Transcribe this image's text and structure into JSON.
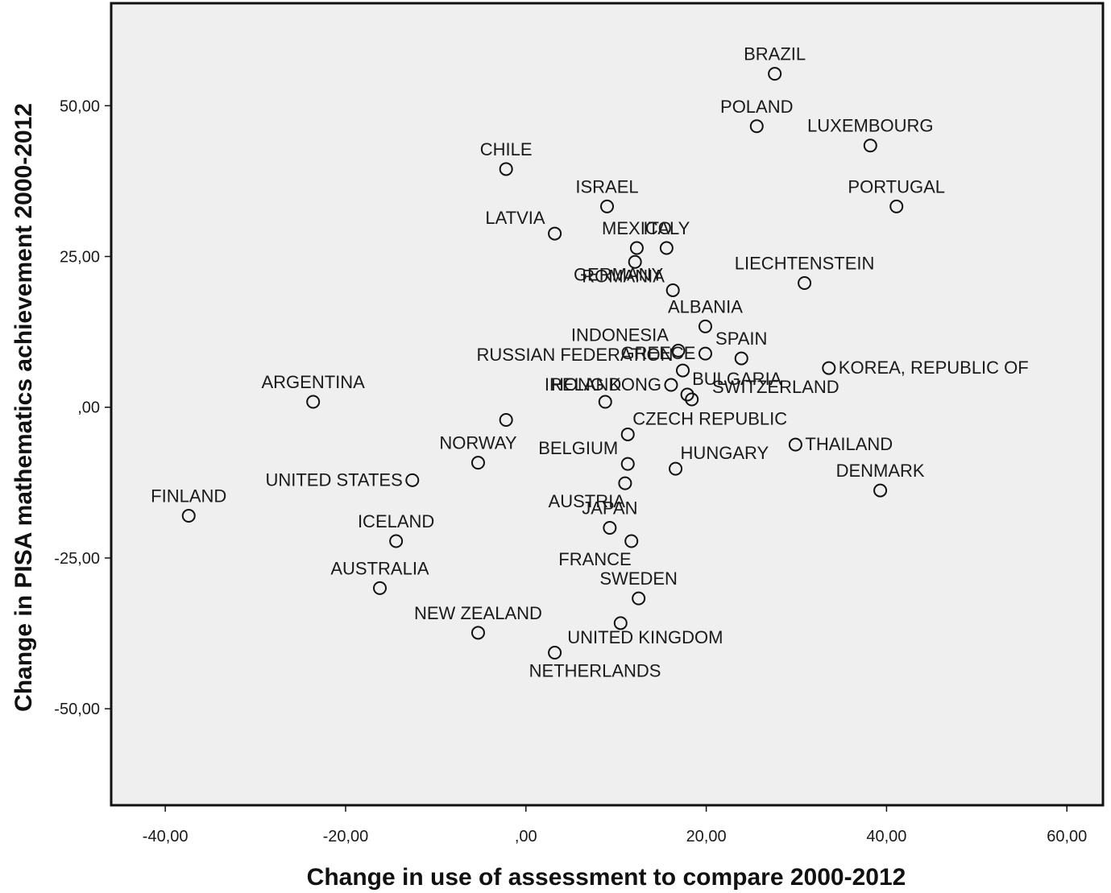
{
  "chart_data": {
    "type": "scatter",
    "xlabel": "Change in use of assessment to compare 2000-2012",
    "ylabel": "Change in PISA mathematics achievement 2000-2012",
    "xlim": [
      -46,
      64
    ],
    "ylim": [
      -66,
      67
    ],
    "xticks": [
      {
        "value": -40,
        "label": "-40,00"
      },
      {
        "value": -20,
        "label": "-20,00"
      },
      {
        "value": 0,
        "label": ",00"
      },
      {
        "value": 20,
        "label": "20,00"
      },
      {
        "value": 40,
        "label": "40,00"
      },
      {
        "value": 60,
        "label": "60,00"
      }
    ],
    "yticks": [
      {
        "value": 50,
        "label": "50,00"
      },
      {
        "value": 25,
        "label": "25,00"
      },
      {
        "value": 0,
        "label": ",00"
      },
      {
        "value": -25,
        "label": "-25,00"
      },
      {
        "value": -50,
        "label": "-50,00"
      }
    ],
    "grid": false,
    "background": "#efefef",
    "marker": "open-circle",
    "points": [
      {
        "x": 27.6,
        "y": 55.3,
        "label": "BRAZIL",
        "la": "above"
      },
      {
        "x": 25.6,
        "y": 46.6,
        "label": "POLAND",
        "la": "above"
      },
      {
        "x": 38.2,
        "y": 43.4,
        "label": "LUXEMBOURG",
        "la": "above"
      },
      {
        "x": -2.2,
        "y": 39.5,
        "label": "CHILE",
        "la": "above"
      },
      {
        "x": 9.0,
        "y": 33.3,
        "label": "ISRAEL",
        "la": "above"
      },
      {
        "x": 41.1,
        "y": 33.3,
        "label": "PORTUGAL",
        "la": "above"
      },
      {
        "x": 3.2,
        "y": 28.8,
        "label": "LATVIA",
        "la": "upper-left"
      },
      {
        "x": 12.3,
        "y": 26.4,
        "label": "MEXICO",
        "la": "above"
      },
      {
        "x": 15.6,
        "y": 26.4,
        "label": "ITALY",
        "la": "above"
      },
      {
        "x": 12.1,
        "y": 24.1,
        "label": "ROMANIA",
        "la": "below-right"
      },
      {
        "x": 16.3,
        "y": 19.4,
        "label": "GERMANY",
        "la": "upper-left"
      },
      {
        "x": 30.9,
        "y": 20.6,
        "label": "LIECHTENSTEIN",
        "la": "above"
      },
      {
        "x": 19.9,
        "y": 13.4,
        "label": "ALBANIA",
        "la": "above"
      },
      {
        "x": 16.9,
        "y": 9.4,
        "label": "INDONESIA",
        "la": "upper-left"
      },
      {
        "x": 19.9,
        "y": 8.9,
        "label": "GREECE",
        "la": "left"
      },
      {
        "x": 23.9,
        "y": 8.1,
        "label": "SPAIN",
        "la": "above"
      },
      {
        "x": 17.4,
        "y": 6.1,
        "label": "RUSSIAN FEDERATION",
        "la": "upper-left"
      },
      {
        "x": 33.6,
        "y": 6.5,
        "label": "KOREA, REPUBLIC OF",
        "la": "right"
      },
      {
        "x": 16.1,
        "y": 3.7,
        "label": "HONG KONG",
        "la": "left"
      },
      {
        "x": 17.9,
        "y": 2.1,
        "label": "BULGARIA",
        "la": "upper-right"
      },
      {
        "x": 18.4,
        "y": 1.3,
        "label": "SWITZERLAND",
        "la": "far-right"
      },
      {
        "x": -23.6,
        "y": 0.9,
        "label": "ARGENTINA",
        "la": "above"
      },
      {
        "x": 8.8,
        "y": 0.9,
        "label": "IRELAND",
        "la": "upper-left-far"
      },
      {
        "x": -2.2,
        "y": -2.1,
        "label": "",
        "la": "none"
      },
      {
        "x": 11.3,
        "y": -4.5,
        "label": "CZECH REPUBLIC",
        "la": "upper-right"
      },
      {
        "x": 29.9,
        "y": -6.2,
        "label": "THAILAND",
        "la": "right"
      },
      {
        "x": -5.3,
        "y": -9.2,
        "label": "NORWAY",
        "la": "above"
      },
      {
        "x": 11.3,
        "y": -9.4,
        "label": "BELGIUM",
        "la": "upper-left"
      },
      {
        "x": 16.6,
        "y": -10.2,
        "label": "HUNGARY",
        "la": "upper-right"
      },
      {
        "x": 11.0,
        "y": -12.6,
        "label": "AUSTRIA",
        "la": "below-left"
      },
      {
        "x": -12.6,
        "y": -12.1,
        "label": "UNITED STATES",
        "la": "left"
      },
      {
        "x": 39.3,
        "y": -13.8,
        "label": "DENMARK",
        "la": "above"
      },
      {
        "x": -37.4,
        "y": -18.0,
        "label": "FINLAND",
        "la": "above"
      },
      {
        "x": 9.3,
        "y": -20.0,
        "label": "JAPAN",
        "la": "above"
      },
      {
        "x": -14.4,
        "y": -22.2,
        "label": "ICELAND",
        "la": "above"
      },
      {
        "x": 11.7,
        "y": -22.2,
        "label": "FRANCE",
        "la": "below-left"
      },
      {
        "x": -16.2,
        "y": -30.0,
        "label": "AUSTRALIA",
        "la": "above"
      },
      {
        "x": 12.5,
        "y": -31.7,
        "label": "SWEDEN",
        "la": "above"
      },
      {
        "x": 10.5,
        "y": -35.8,
        "label": "UNITED KINGDOM",
        "la": "below-right"
      },
      {
        "x": -5.3,
        "y": -37.4,
        "label": "NEW ZEALAND",
        "la": "above"
      },
      {
        "x": 3.2,
        "y": -40.7,
        "label": "NETHERLANDS",
        "la": "below"
      }
    ]
  }
}
